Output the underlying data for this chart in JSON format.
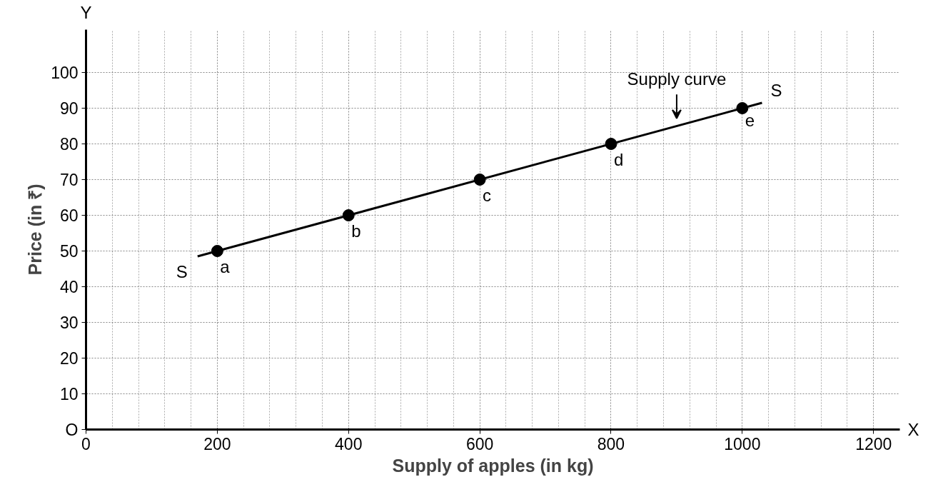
{
  "chart_data": {
    "type": "scatter",
    "xlabel": "Supply of apples (in kg)",
    "ylabel": "Price (in ₹)",
    "series": [
      {
        "type": "line",
        "color": "#000000",
        "marker": "none",
        "x": [
          170,
          1030
        ],
        "values": [
          48.5,
          91.5
        ]
      },
      {
        "color": "#000000",
        "marker": "circle",
        "x": [
          200,
          400,
          600,
          800,
          1000
        ],
        "values": [
          50,
          60,
          70,
          80,
          90
        ]
      }
    ],
    "xlim": [
      0,
      1240
    ],
    "ylim": [
      0,
      112
    ],
    "xticks": [
      0,
      200,
      400,
      600,
      800,
      1000,
      1200
    ],
    "yticks": [
      {
        "value": 0,
        "label": "O"
      },
      10,
      20,
      30,
      40,
      50,
      60,
      70,
      80,
      90,
      100
    ],
    "grid": true,
    "line_style": "solid",
    "annotations": [
      {
        "text": "a",
        "x": 200,
        "y": 50
      },
      {
        "text": "b",
        "x": 400,
        "y": 60
      },
      {
        "text": "c",
        "x": 600,
        "y": 70
      },
      {
        "text": "d",
        "x": 800,
        "y": 80
      },
      {
        "text": "e",
        "x": 1000,
        "y": 90
      },
      {
        "text": "S",
        "x": 170,
        "y": 48.5
      },
      {
        "text": "S",
        "x": 1030,
        "y": 91.5
      },
      {
        "text": "Supply curve",
        "x": 900,
        "y": 86
      },
      "X",
      "Y"
    ]
  }
}
